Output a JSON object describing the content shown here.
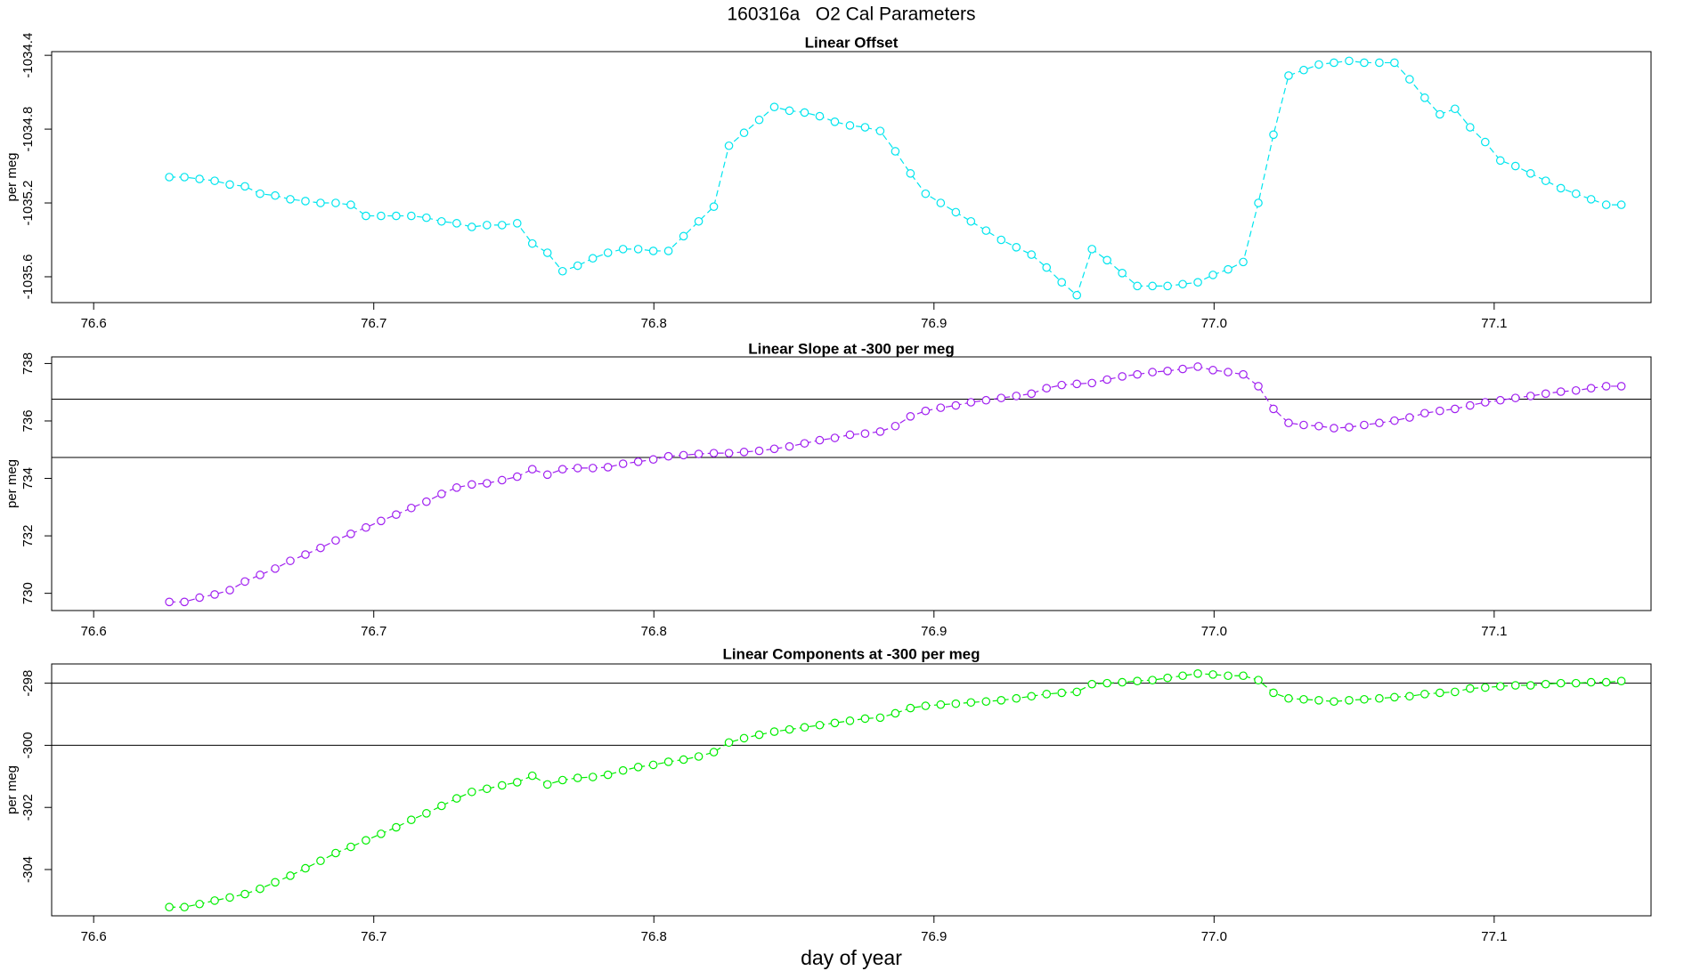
{
  "title": "160316a   O2 Cal Parameters",
  "xlabel": "day of year",
  "chart_data": [
    {
      "type": "scatter",
      "title": "Linear Offset",
      "ylabel": "per meg",
      "color": "#00e5ee",
      "connect": "dashed",
      "x": [
        76.627,
        76.6324,
        76.6378,
        76.6432,
        76.6486,
        76.654,
        76.6594,
        76.6648,
        76.6702,
        76.6756,
        76.681,
        76.6864,
        76.6918,
        76.6972,
        76.7026,
        76.708,
        76.7134,
        76.7188,
        76.7242,
        76.7296,
        76.735,
        76.7404,
        76.7458,
        76.7512,
        76.7566,
        76.762,
        76.7674,
        76.7728,
        76.7782,
        76.7836,
        76.789,
        76.7944,
        76.7998,
        76.8052,
        76.8106,
        76.816,
        76.8214,
        76.8268,
        76.8322,
        76.8376,
        76.843,
        76.8484,
        76.8538,
        76.8592,
        76.8646,
        76.87,
        76.8754,
        76.8808,
        76.8862,
        76.8916,
        76.897,
        76.9024,
        76.9078,
        76.9132,
        76.9186,
        76.924,
        76.9294,
        76.9348,
        76.9402,
        76.9456,
        76.951,
        76.9564,
        76.9618,
        76.9672,
        76.9726,
        76.978,
        76.9834,
        76.9888,
        76.9942,
        76.9996,
        77.005,
        77.0104,
        77.0158,
        77.0212,
        77.0266,
        77.032,
        77.0374,
        77.0428,
        77.0482,
        77.0536,
        77.059,
        77.0644,
        77.0698,
        77.0752,
        77.0806,
        77.086,
        77.0914,
        77.0968,
        77.1022,
        77.1076,
        77.113,
        77.1184,
        77.1238,
        77.1292,
        77.1346,
        77.14,
        77.1454
      ],
      "values": [
        -1035.06,
        -1035.06,
        -1035.07,
        -1035.08,
        -1035.1,
        -1035.11,
        -1035.15,
        -1035.16,
        -1035.18,
        -1035.19,
        -1035.2,
        -1035.2,
        -1035.21,
        -1035.27,
        -1035.27,
        -1035.27,
        -1035.27,
        -1035.28,
        -1035.3,
        -1035.31,
        -1035.33,
        -1035.32,
        -1035.32,
        -1035.31,
        -1035.42,
        -1035.47,
        -1035.57,
        -1035.54,
        -1035.5,
        -1035.47,
        -1035.45,
        -1035.45,
        -1035.46,
        -1035.46,
        -1035.38,
        -1035.3,
        -1035.22,
        -1034.89,
        -1034.82,
        -1034.75,
        -1034.68,
        -1034.7,
        -1034.71,
        -1034.73,
        -1034.76,
        -1034.78,
        -1034.79,
        -1034.81,
        -1034.92,
        -1035.04,
        -1035.15,
        -1035.2,
        -1035.25,
        -1035.3,
        -1035.35,
        -1035.4,
        -1035.44,
        -1035.48,
        -1035.55,
        -1035.63,
        -1035.7,
        -1035.45,
        -1035.51,
        -1035.58,
        -1035.65,
        -1035.65,
        -1035.65,
        -1035.64,
        -1035.63,
        -1035.59,
        -1035.56,
        -1035.52,
        -1035.2,
        -1034.83,
        -1034.51,
        -1034.48,
        -1034.45,
        -1034.44,
        -1034.43,
        -1034.44,
        -1034.44,
        -1034.44,
        -1034.53,
        -1034.63,
        -1034.72,
        -1034.69,
        -1034.79,
        -1034.87,
        -1034.97,
        -1035.0,
        -1035.04,
        -1035.08,
        -1035.12,
        -1035.15,
        -1035.18,
        -1035.21,
        -1035.21
      ],
      "xlim": [
        76.585,
        77.156
      ],
      "xticks": [
        76.6,
        76.7,
        76.8,
        76.9,
        {
          "value": 77,
          "label": "77.0"
        },
        77.1
      ],
      "ylim": [
        -1035.74,
        -1034.38
      ],
      "yticks": [
        -1034.4,
        -1034.8,
        -1035.2,
        -1035.6
      ]
    },
    {
      "type": "scatter",
      "title": "Linear Slope at -300 per meg",
      "ylabel": "per meg",
      "color": "#a020f0",
      "connect": "dashed",
      "x": [
        76.627,
        76.6324,
        76.6378,
        76.6432,
        76.6486,
        76.654,
        76.6594,
        76.6648,
        76.6702,
        76.6756,
        76.681,
        76.6864,
        76.6918,
        76.6972,
        76.7026,
        76.708,
        76.7134,
        76.7188,
        76.7242,
        76.7296,
        76.735,
        76.7404,
        76.7458,
        76.7512,
        76.7566,
        76.762,
        76.7674,
        76.7728,
        76.7782,
        76.7836,
        76.789,
        76.7944,
        76.7998,
        76.8052,
        76.8106,
        76.816,
        76.8214,
        76.8268,
        76.8322,
        76.8376,
        76.843,
        76.8484,
        76.8538,
        76.8592,
        76.8646,
        76.87,
        76.8754,
        76.8808,
        76.8862,
        76.8916,
        76.897,
        76.9024,
        76.9078,
        76.9132,
        76.9186,
        76.924,
        76.9294,
        76.9348,
        76.9402,
        76.9456,
        76.951,
        76.9564,
        76.9618,
        76.9672,
        76.9726,
        76.978,
        76.9834,
        76.9888,
        76.9942,
        76.9996,
        77.005,
        77.0104,
        77.0158,
        77.0212,
        77.0266,
        77.032,
        77.0374,
        77.0428,
        77.0482,
        77.0536,
        77.059,
        77.0644,
        77.0698,
        77.0752,
        77.0806,
        77.086,
        77.0914,
        77.0968,
        77.1022,
        77.1076,
        77.113,
        77.1184,
        77.1238,
        77.1292,
        77.1346,
        77.14,
        77.1454
      ],
      "values": [
        729.7,
        729.7,
        729.85,
        729.96,
        730.11,
        730.41,
        730.64,
        730.86,
        731.13,
        731.35,
        731.58,
        731.84,
        732.07,
        732.29,
        732.52,
        732.74,
        732.97,
        733.19,
        733.46,
        733.68,
        733.79,
        733.83,
        733.94,
        734.06,
        734.32,
        734.13,
        734.32,
        734.36,
        734.36,
        734.39,
        734.51,
        734.58,
        734.66,
        734.77,
        734.81,
        734.85,
        734.88,
        734.88,
        734.92,
        734.96,
        735.03,
        735.11,
        735.22,
        735.33,
        735.41,
        735.52,
        735.56,
        735.63,
        735.82,
        736.16,
        736.35,
        736.46,
        736.54,
        736.65,
        736.72,
        736.8,
        736.87,
        736.95,
        737.14,
        737.25,
        737.29,
        737.32,
        737.44,
        737.55,
        737.62,
        737.7,
        737.74,
        737.81,
        737.89,
        737.77,
        737.7,
        737.62,
        737.21,
        736.42,
        735.93,
        735.86,
        735.82,
        735.75,
        735.78,
        735.86,
        735.93,
        736.01,
        736.12,
        736.27,
        736.35,
        736.42,
        736.54,
        736.65,
        736.72,
        736.8,
        736.87,
        736.95,
        737.02,
        737.06,
        737.14,
        737.21,
        737.21
      ],
      "hlines": [
        734.73,
        736.76
      ],
      "xlim": [
        76.585,
        77.156
      ],
      "xticks": [
        76.6,
        76.7,
        76.8,
        76.9,
        {
          "value": 77,
          "label": "77.0"
        },
        77.1
      ],
      "ylim": [
        729.4,
        738.23
      ],
      "yticks": [
        730,
        732,
        734,
        736,
        738
      ]
    },
    {
      "type": "scatter",
      "title": "Linear Components at -300 per meg",
      "ylabel": "per meg",
      "color": "#00ee00",
      "connect": "dashed",
      "x": [
        76.627,
        76.6324,
        76.6378,
        76.6432,
        76.6486,
        76.654,
        76.6594,
        76.6648,
        76.6702,
        76.6756,
        76.681,
        76.6864,
        76.6918,
        76.6972,
        76.7026,
        76.708,
        76.7134,
        76.7188,
        76.7242,
        76.7296,
        76.735,
        76.7404,
        76.7458,
        76.7512,
        76.7566,
        76.762,
        76.7674,
        76.7728,
        76.7782,
        76.7836,
        76.789,
        76.7944,
        76.7998,
        76.8052,
        76.8106,
        76.816,
        76.8214,
        76.8268,
        76.8322,
        76.8376,
        76.843,
        76.8484,
        76.8538,
        76.8592,
        76.8646,
        76.87,
        76.8754,
        76.8808,
        76.8862,
        76.8916,
        76.897,
        76.9024,
        76.9078,
        76.9132,
        76.9186,
        76.924,
        76.9294,
        76.9348,
        76.9402,
        76.9456,
        76.951,
        76.9564,
        76.9618,
        76.9672,
        76.9726,
        76.978,
        76.9834,
        76.9888,
        76.9942,
        76.9996,
        77.005,
        77.0104,
        77.0158,
        77.0212,
        77.0266,
        77.032,
        77.0374,
        77.0428,
        77.0482,
        77.0536,
        77.059,
        77.0644,
        77.0698,
        77.0752,
        77.0806,
        77.086,
        77.0914,
        77.0968,
        77.1022,
        77.1076,
        77.113,
        77.1184,
        77.1238,
        77.1292,
        77.1346,
        77.14,
        77.1454
      ],
      "values": [
        -305.21,
        -305.21,
        -305.11,
        -305.0,
        -304.9,
        -304.79,
        -304.62,
        -304.41,
        -304.2,
        -303.96,
        -303.72,
        -303.47,
        -303.27,
        -303.06,
        -302.85,
        -302.64,
        -302.4,
        -302.19,
        -301.95,
        -301.71,
        -301.5,
        -301.4,
        -301.29,
        -301.19,
        -300.98,
        -301.26,
        -301.12,
        -301.05,
        -301.02,
        -300.95,
        -300.81,
        -300.7,
        -300.63,
        -300.53,
        -300.46,
        -300.36,
        -300.22,
        -299.91,
        -299.77,
        -299.66,
        -299.56,
        -299.49,
        -299.42,
        -299.35,
        -299.28,
        -299.21,
        -299.14,
        -299.11,
        -298.97,
        -298.8,
        -298.73,
        -298.69,
        -298.66,
        -298.62,
        -298.59,
        -298.55,
        -298.49,
        -298.42,
        -298.35,
        -298.31,
        -298.28,
        -298.03,
        -298.0,
        -297.97,
        -297.93,
        -297.9,
        -297.83,
        -297.76,
        -297.69,
        -297.72,
        -297.76,
        -297.76,
        -297.9,
        -298.31,
        -298.49,
        -298.52,
        -298.55,
        -298.59,
        -298.55,
        -298.52,
        -298.49,
        -298.45,
        -298.42,
        -298.35,
        -298.31,
        -298.28,
        -298.17,
        -298.14,
        -298.1,
        -298.07,
        -298.07,
        -298.03,
        -298.0,
        -298.0,
        -297.97,
        -297.97,
        -297.93
      ],
      "hlines": [
        -300,
        -298
      ],
      "xlim": [
        76.585,
        77.156
      ],
      "xticks": [
        76.6,
        76.7,
        76.8,
        76.9,
        {
          "value": 77,
          "label": "77.0"
        },
        77.1
      ],
      "ylim": [
        -305.49,
        -297.38
      ],
      "yticks": [
        -304,
        -302,
        -300,
        -298
      ]
    }
  ]
}
